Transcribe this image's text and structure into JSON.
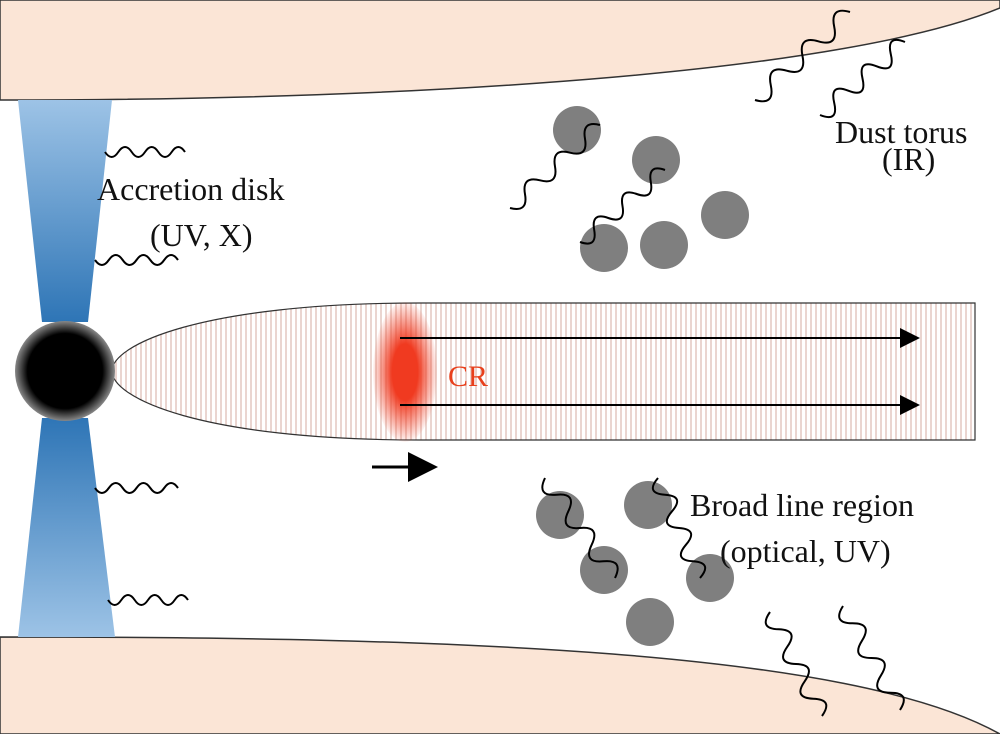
{
  "regions": [
    {
      "name": "Accretion disk",
      "band": "(UV, X)"
    },
    {
      "name": "Dust torus",
      "band": "(IR)"
    },
    {
      "name": "Broad line region",
      "band": "(optical, UV)"
    }
  ],
  "jet": {
    "label": "CR"
  }
}
